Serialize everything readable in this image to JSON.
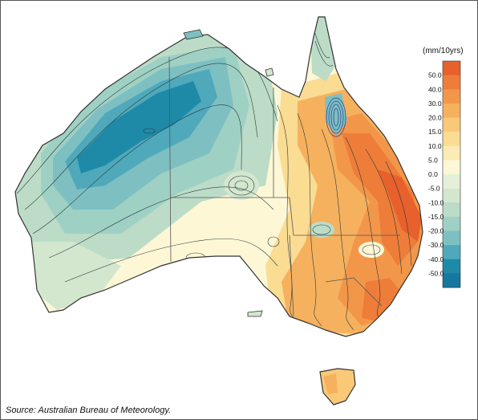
{
  "legend": {
    "unit": "(mm/10yrs)",
    "bins": [
      {
        "label": "50.0",
        "color": "#e8602c"
      },
      {
        "label": "40.0",
        "color": "#ee7d3a"
      },
      {
        "label": "30.0",
        "color": "#f2974a"
      },
      {
        "label": "20.0",
        "color": "#f6b15e"
      },
      {
        "label": "15.0",
        "color": "#f9c978"
      },
      {
        "label": "10.0",
        "color": "#fbdc93"
      },
      {
        "label": "5.0",
        "color": "#fcebb4"
      },
      {
        "label": "0.0",
        "color": "#fdf7d6"
      },
      {
        "label": "-5.0",
        "color": "#e6f0d8"
      },
      {
        "label": "-10.0",
        "color": "#d3e7cf"
      },
      {
        "label": "-15.0",
        "color": "#bcdcc8"
      },
      {
        "label": "-20.0",
        "color": "#9fd0c4"
      },
      {
        "label": "-30.0",
        "color": "#7ec0c2"
      },
      {
        "label": "-40.0",
        "color": "#4fa9bb"
      },
      {
        "label": "-50.0",
        "color": "#1f8aa8"
      },
      {
        "label": "",
        "color": "#1677a0"
      }
    ]
  },
  "source": "Source: Australian Bureau of Meteorology.",
  "colors": {
    "outline": "#333333",
    "contour": "#2b3a3a",
    "intense_contour": "#2a3a8c",
    "state_border": "#555555"
  }
}
